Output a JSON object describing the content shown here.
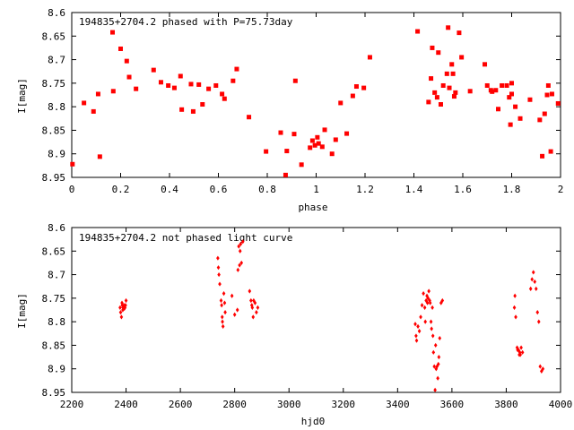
{
  "colors": {
    "point": "#ff0000",
    "axis": "#000000",
    "background": "#ffffff"
  },
  "chart_data": [
    {
      "type": "scatter",
      "title": "194835+2704.2 phased with P=75.73day",
      "xlabel": "phase",
      "ylabel": "I[mag]",
      "xlim": [
        0,
        2
      ],
      "ylim": [
        8.95,
        8.6
      ],
      "y_inverted": true,
      "grid": false,
      "marker": "filled-square",
      "xticks": [
        0,
        0.2,
        0.4,
        0.6,
        0.8,
        1,
        1.2,
        1.4,
        1.6,
        1.8,
        2
      ],
      "xtick_labels": [
        "0",
        "0.2",
        "0.4",
        "0.6",
        "0.8",
        "1",
        "1.2",
        "1.4",
        "1.6",
        "1.8",
        "2"
      ],
      "yticks": [
        8.6,
        8.65,
        8.7,
        8.75,
        8.8,
        8.85,
        8.9,
        8.95
      ],
      "ytick_labels": [
        "8.6",
        "8.65",
        "8.7",
        "8.75",
        "8.8",
        "8.85",
        "8.9",
        "8.95"
      ],
      "series": [
        {
          "x": [
            0.003,
            0.05,
            0.089,
            0.108,
            0.115,
            0.167,
            0.17,
            0.2,
            0.225,
            0.235,
            0.263,
            0.335,
            0.365,
            0.395,
            0.42,
            0.445,
            0.45,
            0.488,
            0.497,
            0.52,
            0.535,
            0.56,
            0.59,
            0.615,
            0.625,
            0.66,
            0.675,
            0.725,
            0.795,
            0.855,
            0.875,
            0.88,
            0.91,
            0.915,
            0.94,
            0.975,
            0.985,
            0.995,
            1.005,
            1.01,
            1.025,
            1.035,
            1.065,
            1.08,
            1.1,
            1.125,
            1.15,
            1.165,
            1.195,
            1.22
          ],
          "y": [
            8.922,
            8.792,
            8.81,
            8.773,
            8.906,
            8.642,
            8.767,
            8.677,
            8.703,
            8.737,
            8.762,
            8.722,
            8.748,
            8.755,
            8.76,
            8.735,
            8.806,
            8.752,
            8.81,
            8.753,
            8.795,
            8.762,
            8.755,
            8.773,
            8.783,
            8.745,
            8.72,
            8.822,
            8.895,
            8.855,
            8.945,
            8.894,
            8.858,
            8.745,
            8.923,
            8.887,
            8.872,
            8.882,
            8.865,
            8.878,
            8.885,
            8.849,
            8.9,
            8.87,
            8.792,
            8.857,
            8.777,
            8.757,
            8.76,
            8.695
          ]
        },
        {
          "x": [
            1.415,
            1.46,
            1.47,
            1.475,
            1.485,
            1.495,
            1.5,
            1.51,
            1.52,
            1.535,
            1.54,
            1.545,
            1.555,
            1.56,
            1.565,
            1.57,
            1.585,
            1.595,
            1.63,
            1.69,
            1.7,
            1.715,
            1.72,
            1.735,
            1.745,
            1.76,
            1.78,
            1.79,
            1.795,
            1.8,
            1.8,
            1.815,
            1.835,
            1.875,
            1.915,
            1.925,
            1.935,
            1.945,
            1.95,
            1.96,
            1.965,
            1.99
          ],
          "y": [
            8.64,
            8.79,
            8.74,
            8.675,
            8.77,
            8.78,
            8.685,
            8.795,
            8.755,
            8.73,
            8.632,
            8.76,
            8.71,
            8.73,
            8.778,
            8.77,
            8.643,
            8.695,
            8.767,
            8.71,
            8.755,
            8.765,
            8.768,
            8.765,
            8.805,
            8.755,
            8.755,
            8.78,
            8.838,
            8.773,
            8.75,
            8.8,
            8.825,
            8.785,
            8.828,
            8.905,
            8.815,
            8.775,
            8.755,
            8.895,
            8.773,
            8.793
          ]
        }
      ]
    },
    {
      "type": "scatter",
      "title": "194835+2704.2 not phased light curve",
      "xlabel": "hjd0",
      "ylabel": "I[mag]",
      "xlim": [
        2200,
        4000
      ],
      "ylim": [
        8.95,
        8.6
      ],
      "y_inverted": true,
      "grid": false,
      "marker": "small-diamond",
      "xticks": [
        2200,
        2400,
        2600,
        2800,
        3000,
        3200,
        3400,
        3600,
        3800,
        4000
      ],
      "xtick_labels": [
        "2200",
        "2400",
        "2600",
        "2800",
        "3000",
        "3200",
        "3400",
        "3600",
        "3800",
        "4000"
      ],
      "yticks": [
        8.6,
        8.65,
        8.7,
        8.75,
        8.8,
        8.85,
        8.9,
        8.95
      ],
      "ytick_labels": [
        "8.6",
        "8.65",
        "8.7",
        "8.75",
        "8.8",
        "8.85",
        "8.9",
        "8.95"
      ],
      "series": [
        {
          "x": [
            2378,
            2380,
            2383,
            2385,
            2386,
            2388,
            2389,
            2390,
            2392,
            2393,
            2394,
            2396,
            2398,
            2400,
            2738,
            2740,
            2742,
            2745,
            2750,
            2752,
            2754,
            2755,
            2757,
            2760,
            2763,
            2765,
            2790,
            2800,
            2810,
            2812,
            2815,
            2818,
            2820,
            2822,
            2825,
            2830,
            2855,
            2860,
            2863,
            2865,
            2868,
            2870,
            2875,
            2880,
            2885
          ],
          "y": [
            8.77,
            8.78,
            8.79,
            8.76,
            8.765,
            8.775,
            8.77,
            8.77,
            8.765,
            8.768,
            8.772,
            8.77,
            8.765,
            8.755,
            8.665,
            8.685,
            8.7,
            8.72,
            8.755,
            8.765,
            8.79,
            8.8,
            8.81,
            8.74,
            8.76,
            8.78,
            8.745,
            8.785,
            8.775,
            8.69,
            8.64,
            8.68,
            8.65,
            8.635,
            8.675,
            8.63,
            8.735,
            8.755,
            8.765,
            8.77,
            8.79,
            8.755,
            8.76,
            8.78,
            8.77
          ]
        },
        {
          "x": [
            3465,
            3468,
            3470,
            3475,
            3480,
            3485,
            3490,
            3495,
            3500,
            3502,
            3505,
            3508,
            3510,
            3512,
            3515,
            3518,
            3520,
            3523,
            3525,
            3528,
            3530,
            3532,
            3535,
            3538,
            3540,
            3542,
            3545,
            3548,
            3550,
            3552,
            3555,
            3560,
            3565,
            3830,
            3832,
            3835,
            3840,
            3842,
            3845,
            3848,
            3850,
            3852,
            3855,
            3860,
            3890,
            3895,
            3900,
            3905,
            3910,
            3915,
            3920,
            3925,
            3930,
            3935
          ],
          "y": [
            8.805,
            8.83,
            8.84,
            8.81,
            8.82,
            8.79,
            8.765,
            8.74,
            8.77,
            8.8,
            8.755,
            8.745,
            8.76,
            8.75,
            8.735,
            8.755,
            8.76,
            8.8,
            8.815,
            8.77,
            8.83,
            8.865,
            8.895,
            8.945,
            8.85,
            8.9,
            8.895,
            8.92,
            8.89,
            8.875,
            8.835,
            8.76,
            8.755,
            8.77,
            8.745,
            8.79,
            8.855,
            8.86,
            8.86,
            8.87,
            8.865,
            8.87,
            8.855,
            8.865,
            8.73,
            8.71,
            8.695,
            8.715,
            8.73,
            8.78,
            8.8,
            8.895,
            8.905,
            8.9
          ]
        }
      ]
    }
  ]
}
